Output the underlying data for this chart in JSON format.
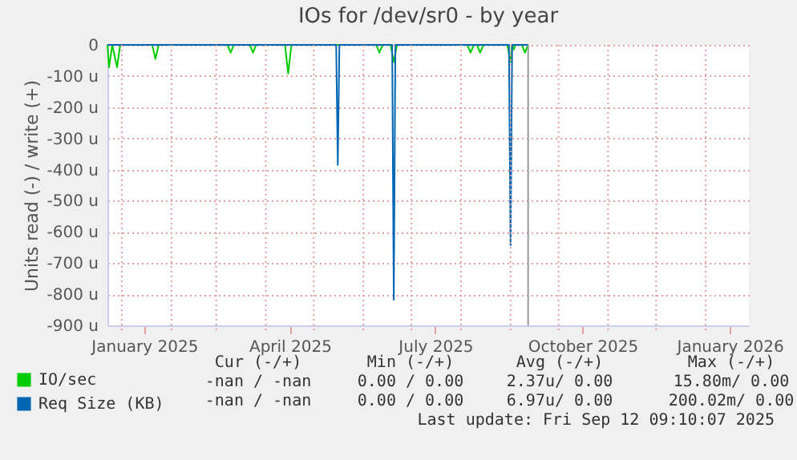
{
  "chart_data": {
    "type": "line",
    "title": "IOs for /dev/sr0 - by year",
    "ylabel": "Units read (-) / write (+)",
    "xlim": [
      "2024-12-23",
      "2026-01-28"
    ],
    "xticks": [
      {
        "value": "2025-01-01",
        "label": null
      },
      {
        "value": "2025-01-15",
        "label": "January 2025"
      },
      {
        "value": "2025-02-01",
        "label": null
      },
      {
        "value": "2025-03-01",
        "label": null
      },
      {
        "value": "2025-04-01",
        "label": null
      },
      {
        "value": "2025-04-16",
        "label": "April 2025"
      },
      {
        "value": "2025-05-01",
        "label": null
      },
      {
        "value": "2025-06-01",
        "label": null
      },
      {
        "value": "2025-07-01",
        "label": null
      },
      {
        "value": "2025-07-16",
        "label": "July 2025"
      },
      {
        "value": "2025-08-01",
        "label": null
      },
      {
        "value": "2025-09-01",
        "label": null
      },
      {
        "value": "2025-10-01",
        "label": null
      },
      {
        "value": "2025-10-16",
        "label": "October 2025"
      },
      {
        "value": "2025-11-01",
        "label": null
      },
      {
        "value": "2025-12-01",
        "label": null
      },
      {
        "value": "2026-01-01",
        "label": null
      },
      {
        "value": "2026-01-16",
        "label": "January 2026"
      }
    ],
    "ylim": [
      -900,
      0
    ],
    "yticks": [
      0,
      {
        "value": -100,
        "label": "-100 u"
      },
      {
        "value": -200,
        "label": "-200 u"
      },
      {
        "value": -300,
        "label": "-300 u"
      },
      {
        "value": -400,
        "label": "-400 u"
      },
      {
        "value": -500,
        "label": "-500 u"
      },
      {
        "value": -600,
        "label": "-600 u"
      },
      {
        "value": -700,
        "label": "-700 u"
      },
      {
        "value": -800,
        "label": "-800 u"
      },
      {
        "value": -900,
        "label": "-900 u"
      }
    ],
    "grid": true,
    "legend": "bottom left",
    "series": [
      {
        "name": "IO/sec",
        "color": "#00cc00",
        "x": [
          "2024-12-23",
          "2024-12-24",
          "2024-12-26",
          "2024-12-29",
          "2024-12-31",
          "2025-01-20",
          "2025-01-22",
          "2025-01-24",
          "2025-03-08",
          "2025-03-10",
          "2025-03-12",
          "2025-03-22",
          "2025-03-24",
          "2025-03-26",
          "2025-04-13",
          "2025-04-15",
          "2025-04-17",
          "2025-06-09",
          "2025-06-11",
          "2025-06-13",
          "2025-06-18",
          "2025-06-20",
          "2025-06-22",
          "2025-08-05",
          "2025-08-07",
          "2025-08-09",
          "2025-08-11",
          "2025-08-13",
          "2025-08-15",
          "2025-08-30",
          "2025-09-01",
          "2025-09-02",
          "2025-09-03",
          "2025-09-04",
          "2025-09-08",
          "2025-09-10",
          "2025-09-12"
        ],
        "values": [
          0,
          -72,
          0,
          -72,
          0,
          0,
          -45,
          0,
          0,
          -25,
          0,
          0,
          -25,
          0,
          0,
          -92,
          0,
          0,
          -25,
          0,
          0,
          -55,
          0,
          0,
          -25,
          0,
          0,
          -25,
          0,
          0,
          -55,
          0,
          -15,
          0,
          0,
          -25,
          0
        ]
      },
      {
        "name": "Req Size (KB)",
        "color": "#0066b3",
        "x": [
          "2024-12-23",
          "2025-05-15",
          "2025-05-16",
          "2025-05-17",
          "2025-06-19",
          "2025-06-20",
          "2025-06-21",
          "2025-08-31",
          "2025-09-01",
          "2025-09-02",
          "2025-09-12"
        ],
        "values": [
          0,
          0,
          -385,
          0,
          0,
          -818,
          0,
          0,
          -643,
          0,
          0
        ]
      }
    ],
    "ref_lines": [
      {
        "axis": "x",
        "value": "2025-09-12",
        "color": "#999999"
      }
    ],
    "annotations": [
      "Cur (-/+)",
      "Min (-/+)",
      "Avg (-/+)",
      "Max (-/+)",
      "-nan / -nan",
      "0.00 / 0.00",
      "2.37u/ 0.00",
      "15.80m/ 0.00",
      "-nan / -nan",
      "0.00 / 0.00",
      "6.97u/ 0.00",
      "200.02m/ 0.00",
      "Last update: Fri Sep 12 09:10:07 2025"
    ]
  }
}
